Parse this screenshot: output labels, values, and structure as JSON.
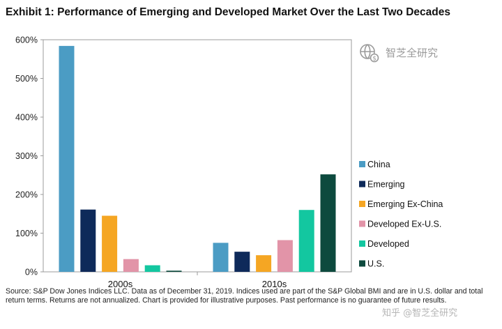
{
  "title": "Exhibit 1: Performance of Emerging and Developed Market Over the Last Two Decades",
  "watermark": {
    "logo_icon": "globe-dollar-icon",
    "text": "智芝全研究",
    "footer_text": "知乎 @智芝全研究"
  },
  "source_note": "Source: S&P Dow Jones Indices LLC. Data as of December 31, 2019. Indices used are part of the S&P Global BMI and are in U.S. dollar and total return terms. Returns are not annualized. Chart is provided for illustrative purposes. Past performance is no guarantee of future results.",
  "chart_data": {
    "type": "bar",
    "categories": [
      "2000s",
      "2010s"
    ],
    "ylim": [
      0,
      600
    ],
    "ytick_values": [
      0,
      100,
      200,
      300,
      400,
      500,
      600
    ],
    "ytick_labels": [
      "0%",
      "100%",
      "200%",
      "300%",
      "400%",
      "500%",
      "600%"
    ],
    "grid": false,
    "legend_position": "right",
    "series": [
      {
        "name": "China",
        "color": "#4b9cc4",
        "values": [
          584,
          75
        ]
      },
      {
        "name": "Emerging",
        "color": "#0e2a5a",
        "values": [
          161,
          52
        ]
      },
      {
        "name": "Emerging Ex-China",
        "color": "#f5a623",
        "values": [
          145,
          43
        ]
      },
      {
        "name": "Developed Ex-U.S.",
        "color": "#e294a8",
        "values": [
          33,
          82
        ]
      },
      {
        "name": "Developed",
        "color": "#13c7a0",
        "values": [
          17,
          160
        ]
      },
      {
        "name": "U.S.",
        "color": "#0d4a3e",
        "values": [
          3,
          252
        ]
      }
    ]
  }
}
